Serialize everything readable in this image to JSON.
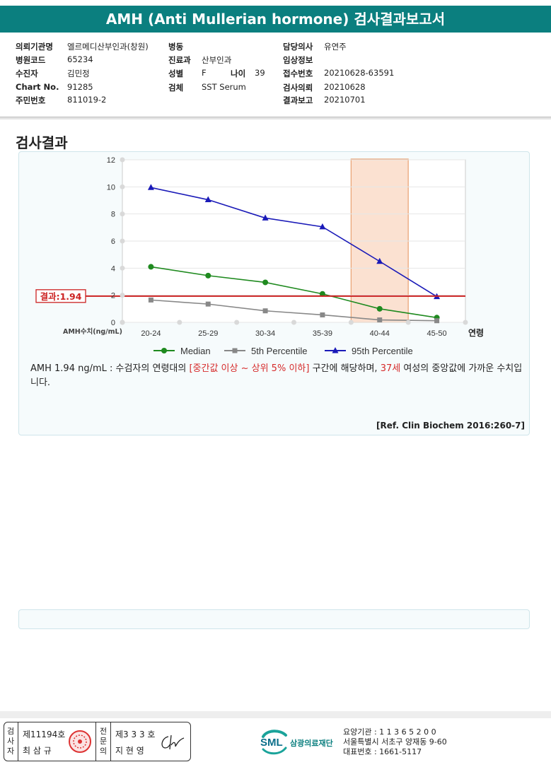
{
  "title": "AMH (Anti Mullerian hormone) 검사결과보고서",
  "info": {
    "col1": [
      {
        "label": "의뢰기관명",
        "value": "엘르메디산부인과(창원)"
      },
      {
        "label": "병원코드",
        "value": "65234"
      },
      {
        "label": "수진자",
        "value": "김민정"
      },
      {
        "label": "Chart No.",
        "value": "91285"
      },
      {
        "label": "주민번호",
        "value": "811019-2"
      }
    ],
    "col2": [
      {
        "label": "병동",
        "value": ""
      },
      {
        "label": "진료과",
        "value": "산부인과"
      },
      {
        "label": "성별",
        "value": "F"
      },
      {
        "label": "검체",
        "value": "SST Serum"
      }
    ],
    "age_label": "나이",
    "age_value": "39",
    "col3": [
      {
        "label": "담당의사",
        "value": "유연주"
      },
      {
        "label": "임상정보",
        "value": ""
      },
      {
        "label": "접수번호",
        "value": "20210628-63591"
      },
      {
        "label": "검사의뢰",
        "value": "20210628"
      },
      {
        "label": "결과보고",
        "value": "20210701"
      }
    ]
  },
  "section_title": "검사결과",
  "chart_data": {
    "type": "line",
    "categories": [
      "20-24",
      "25-29",
      "30-34",
      "35-39",
      "40-44",
      "45-50"
    ],
    "xlabel": "연령",
    "ylabel": "AMH수치(ng/mL)",
    "ylim": [
      0,
      12
    ],
    "yticks": [
      0,
      2,
      4,
      6,
      8,
      10,
      12
    ],
    "grid": true,
    "legend_position": "bottom",
    "series": [
      {
        "name": "Median",
        "values": [
          4.1,
          3.45,
          2.95,
          2.1,
          1.0,
          0.35
        ],
        "color": "#1f8a1f",
        "marker": "circle"
      },
      {
        "name": "5th Percentile",
        "values": [
          1.65,
          1.35,
          0.85,
          0.55,
          0.18,
          0.12
        ],
        "color": "#888888",
        "marker": "square"
      },
      {
        "name": "95th Percentile",
        "values": [
          9.95,
          9.05,
          7.7,
          7.05,
          4.5,
          1.9
        ],
        "color": "#1a1ab8",
        "marker": "triangle"
      }
    ],
    "result_line": {
      "value": 1.94,
      "label": "결과:1.94",
      "color": "#cc2222"
    },
    "highlight_category": "40-44",
    "highlight_color": "#f7c4a4"
  },
  "description": {
    "p1": "AMH  1.94 ng/mL : 수검자의 연령대의 ",
    "red1": "[중간값 이상 ~ 상위 5% 이하]",
    "p2": " 구간에 해당하며, ",
    "red2": "37세",
    "p3": " 여성의 중앙값에 가까운 수치입니다."
  },
  "reference": "[Ref. Clin Biochem 2016:260-7]",
  "footer": {
    "sign1_vertical": [
      "검",
      "사",
      "자"
    ],
    "sign1_no": "제11194호",
    "sign1_name": "최 삼 규",
    "sign2_vertical": [
      "전",
      "문",
      "의"
    ],
    "sign2_no": "제3 3 3 호",
    "sign2_name": "지 현 영",
    "logo": "SML",
    "org": "삼광의료재단",
    "lines": [
      "요양기관 : 1 1 3 6 5 2 0 0",
      "서울특별시 서초구 양재동 9-60",
      "대표번호 : 1661-5117"
    ]
  }
}
